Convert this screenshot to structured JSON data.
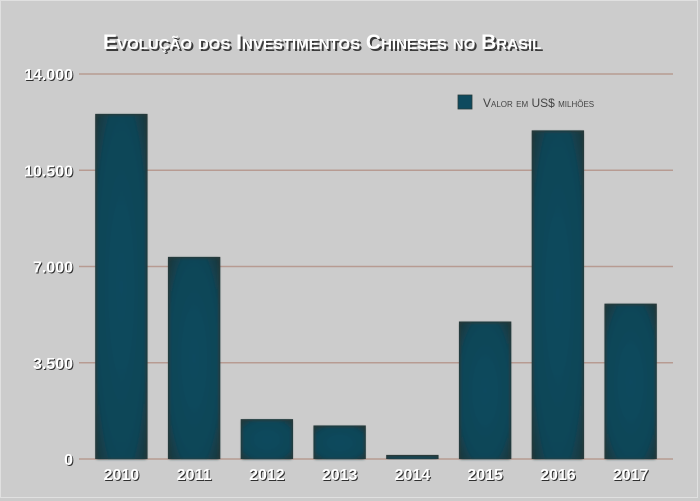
{
  "chart_data": {
    "type": "bar",
    "title": "Evolução dos Investimentos Chineses no Brasil",
    "categories": [
      "2010",
      "2011",
      "2012",
      "2013",
      "2014",
      "2015",
      "2016",
      "2017"
    ],
    "series": [
      {
        "name": "Valor em US$ milhões",
        "values": [
          12550,
          7350,
          1450,
          1220,
          150,
          5000,
          11950,
          5650
        ],
        "color": "#0e4a5e"
      }
    ],
    "yticks": [
      "0",
      "3.500",
      "7.000",
      "10.500",
      "14.000"
    ],
    "ylim": [
      0,
      14000
    ],
    "grid": true,
    "legend_position": "top-right",
    "colors": {
      "background": "#cccccc",
      "gridline": "#b79b92",
      "bar": "#0e4a5e",
      "bar_edge": "#2a3a3a"
    }
  }
}
